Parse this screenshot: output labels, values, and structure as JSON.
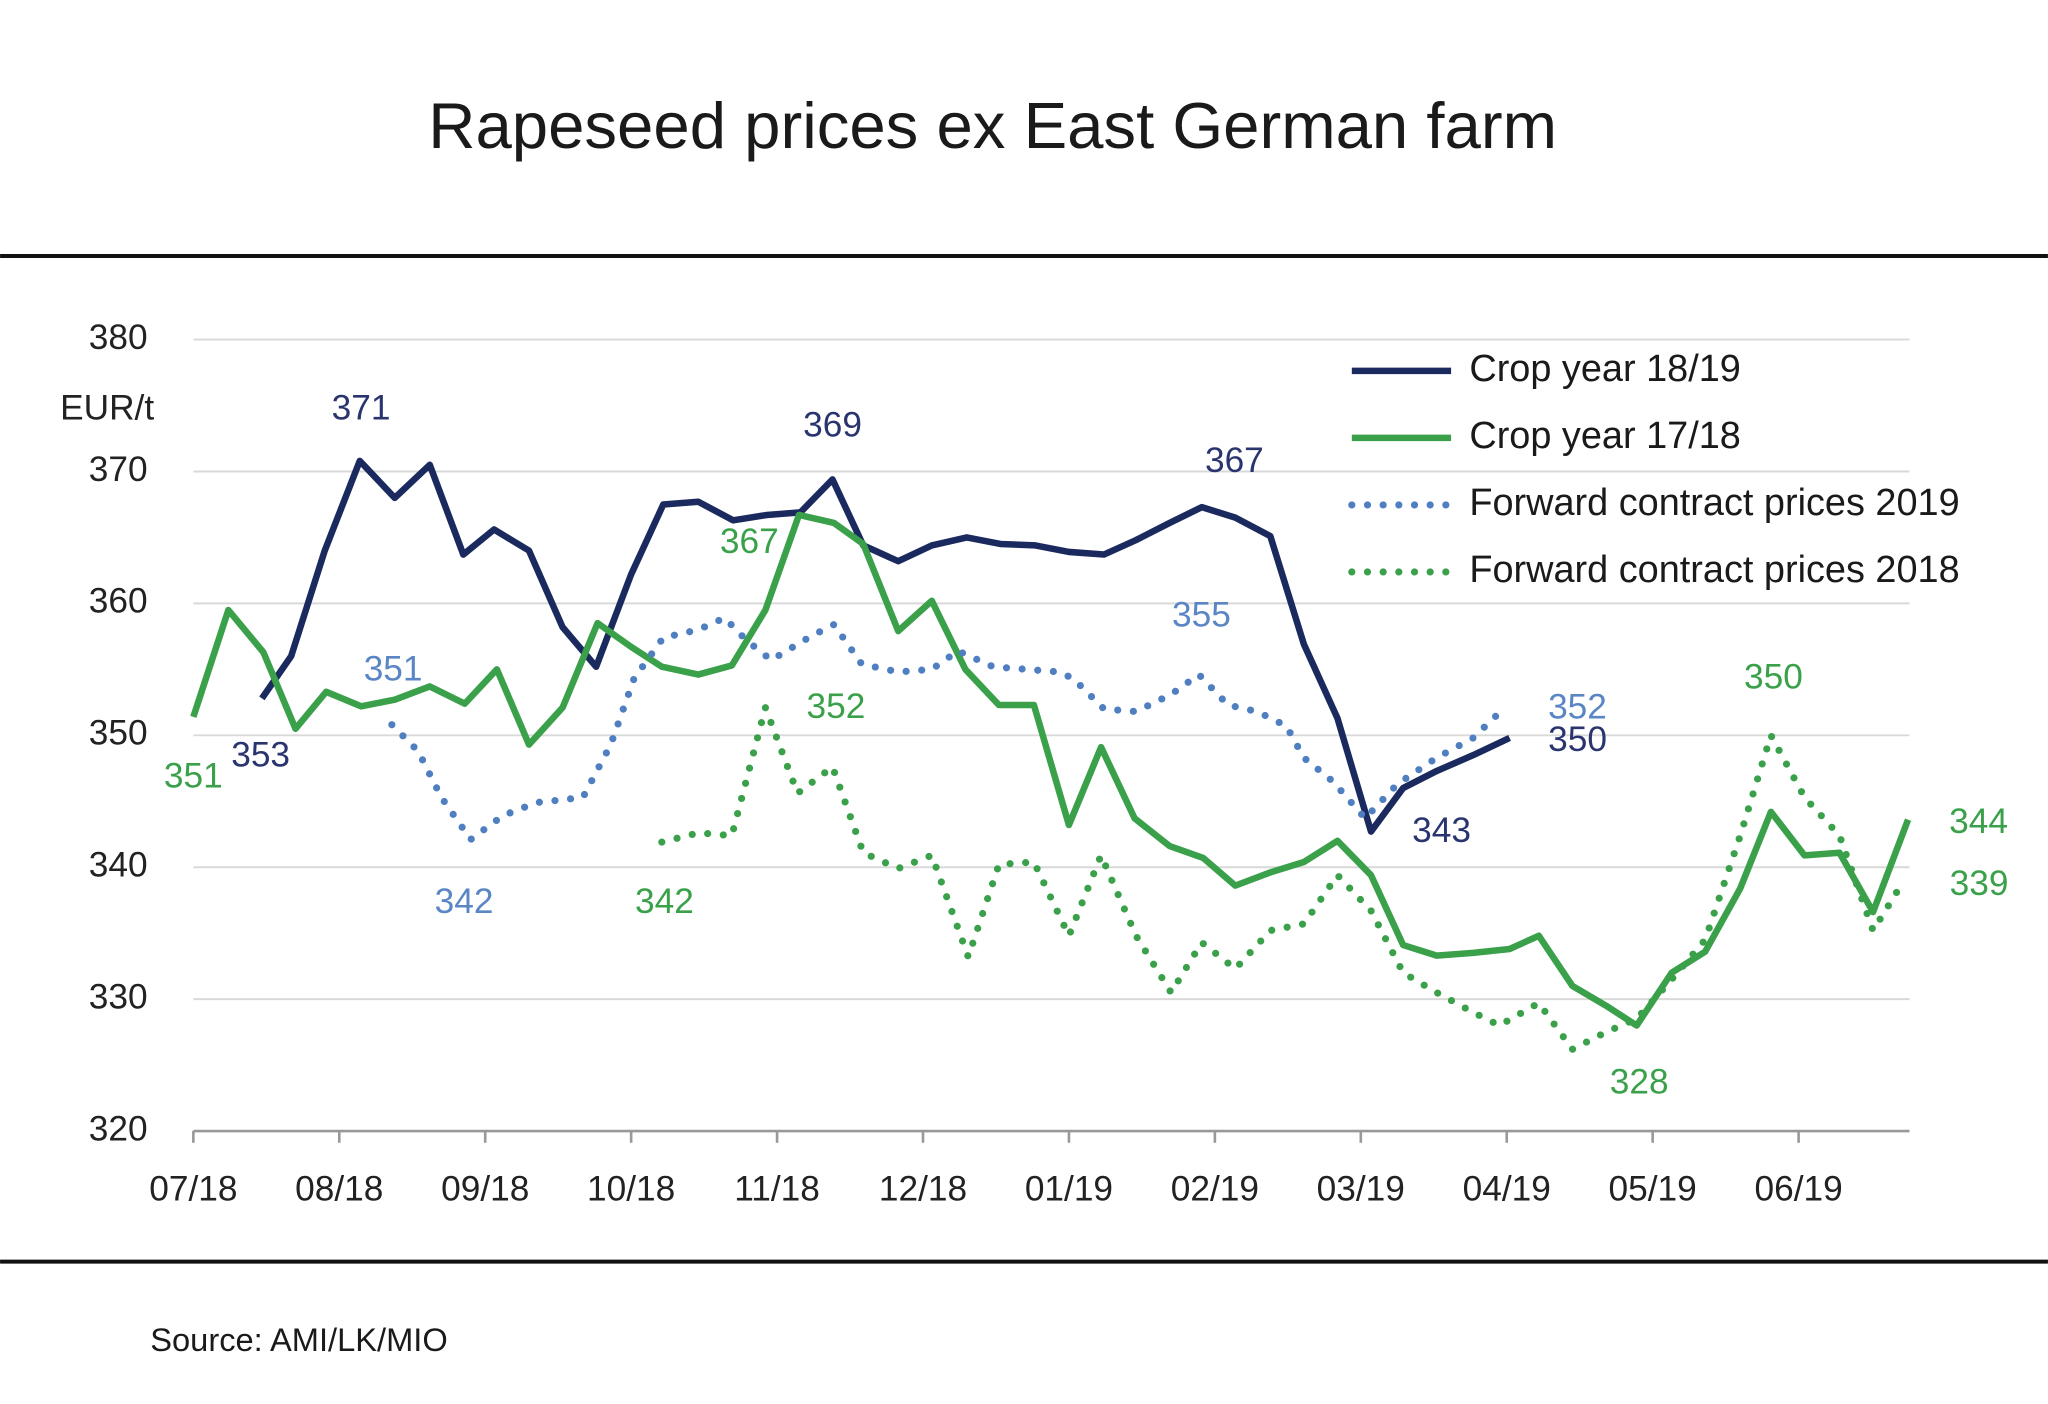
{
  "chart_data": {
    "type": "line",
    "title": "Rapeseed prices ex East German farm",
    "y_label": "EUR/t",
    "source": "Source: AMI/LK/MIO",
    "xlim": [
      0,
      11.76
    ],
    "xticks": [
      {
        "value": 0,
        "label": "07/18"
      },
      {
        "value": 1,
        "label": "08/18"
      },
      {
        "value": 2,
        "label": "09/18"
      },
      {
        "value": 3,
        "label": "10/18"
      },
      {
        "value": 4,
        "label": "11/18"
      },
      {
        "value": 5,
        "label": "12/18"
      },
      {
        "value": 6,
        "label": "01/19"
      },
      {
        "value": 7,
        "label": "02/19"
      },
      {
        "value": 8,
        "label": "03/19"
      },
      {
        "value": 9,
        "label": "04/19"
      },
      {
        "value": 10,
        "label": "05/19"
      },
      {
        "value": 11,
        "label": "06/19"
      }
    ],
    "ylim": [
      320,
      380
    ],
    "yticks": [
      320,
      330,
      340,
      350,
      360,
      370,
      380
    ],
    "grid": true,
    "legend": "top-right",
    "series": [
      {
        "name": "Crop year 18/19",
        "color": "#1b2a5e",
        "style": "solid",
        "label_color": "#2a3570",
        "x": [
          0.47,
          0.67,
          0.9,
          1.14,
          1.38,
          1.62,
          1.85,
          2.06,
          2.3,
          2.53,
          2.76,
          3.0,
          3.22,
          3.46,
          3.7,
          3.93,
          4.16,
          4.38,
          4.59,
          4.83,
          5.06,
          5.3,
          5.53,
          5.77,
          6.0,
          6.24,
          6.46,
          6.69,
          6.91,
          7.14,
          7.38,
          7.61,
          7.84,
          8.07,
          8.29,
          8.52,
          8.77,
          9.02
        ],
        "values": [
          352.8,
          356,
          364,
          370.8,
          368,
          370.5,
          363.7,
          365.6,
          364,
          358.2,
          355.2,
          362.2,
          367.5,
          367.7,
          366.3,
          366.7,
          366.9,
          369.4,
          364.4,
          363.2,
          364.4,
          365,
          364.5,
          364.4,
          363.9,
          363.7,
          364.8,
          366.1,
          367.3,
          366.5,
          365.1,
          356.9,
          351.3,
          342.7,
          346,
          347.3,
          348.5,
          349.8
        ],
        "value_labels": [
          "353",
          null,
          null,
          "371",
          null,
          null,
          null,
          null,
          null,
          null,
          null,
          null,
          null,
          null,
          null,
          null,
          null,
          "369",
          null,
          null,
          null,
          null,
          null,
          null,
          null,
          null,
          null,
          null,
          "367",
          null,
          null,
          null,
          null,
          "343",
          null,
          null,
          null,
          "350"
        ]
      },
      {
        "name": "Crop year 17/18",
        "color": "#3aa14a",
        "style": "solid",
        "label_color": "#3aa14a",
        "x": [
          0,
          0.24,
          0.48,
          0.7,
          0.91,
          1.15,
          1.38,
          1.62,
          1.86,
          2.08,
          2.3,
          2.53,
          2.77,
          3.0,
          3.21,
          3.46,
          3.69,
          3.92,
          4.15,
          4.39,
          4.59,
          4.83,
          5.06,
          5.29,
          5.52,
          5.76,
          6.0,
          6.22,
          6.45,
          6.69,
          6.92,
          7.14,
          7.38,
          7.61,
          7.84,
          8.07,
          8.29,
          8.52,
          8.77,
          9.02,
          9.22,
          9.45,
          9.68,
          9.89,
          10.13,
          10.36,
          10.6,
          10.81,
          11.04,
          11.28,
          11.51,
          11.75
        ],
        "values": [
          351.4,
          359.5,
          356.3,
          350.5,
          353.3,
          352.2,
          352.7,
          353.7,
          352.4,
          355,
          349.3,
          352.1,
          358.5,
          356.7,
          355.2,
          354.6,
          355.3,
          359.5,
          366.7,
          366.1,
          364.5,
          357.9,
          360.2,
          355,
          352.3,
          352.3,
          343.2,
          349.1,
          343.7,
          341.6,
          340.7,
          338.6,
          339.6,
          340.4,
          342,
          339.4,
          334.1,
          333.3,
          333.5,
          333.8,
          334.8,
          331,
          329.5,
          328,
          332,
          333.6,
          338.4,
          344.2,
          340.9,
          341.1,
          336.6,
          343.6
        ],
        "value_labels": [
          "351",
          null,
          null,
          null,
          null,
          null,
          null,
          null,
          null,
          null,
          null,
          null,
          null,
          null,
          null,
          null,
          null,
          null,
          "367",
          null,
          null,
          null,
          null,
          null,
          null,
          null,
          null,
          null,
          null,
          null,
          null,
          null,
          null,
          null,
          null,
          null,
          null,
          null,
          null,
          null,
          null,
          null,
          null,
          "328",
          null,
          null,
          null,
          null,
          null,
          null,
          null,
          "344"
        ]
      },
      {
        "name": "Forward contract prices 2019",
        "color": "#4f7fc0",
        "style": "dotted",
        "label_color": "#5b86c5",
        "x": [
          1.36,
          1.54,
          1.7,
          1.9,
          2.12,
          2.35,
          2.52,
          2.67,
          2.86,
          3.02,
          3.22,
          3.46,
          3.64,
          3.79,
          3.96,
          4.23,
          4.39,
          4.58,
          4.83,
          5.06,
          5.24,
          5.48,
          5.71,
          5.93,
          6.03,
          6.24,
          6.46,
          6.7,
          6.89,
          7.09,
          7.29,
          7.49,
          7.61,
          7.81,
          8.03,
          8.25,
          8.52,
          8.77,
          8.93
        ],
        "values": [
          350.8,
          348.8,
          345.3,
          342.1,
          343.9,
          344.9,
          345.1,
          345.3,
          349.3,
          354.3,
          357.4,
          358,
          358.9,
          357.2,
          355.7,
          357.5,
          358.4,
          355.4,
          354.8,
          355,
          356.4,
          355.2,
          355,
          354.8,
          354.3,
          352,
          351.8,
          353.1,
          354.6,
          352.3,
          351.8,
          350.7,
          348.3,
          346.5,
          343.7,
          346.3,
          348.3,
          349.8,
          351.5
        ],
        "value_labels": [
          "351",
          null,
          null,
          "342",
          null,
          null,
          null,
          null,
          null,
          null,
          null,
          null,
          null,
          null,
          null,
          null,
          null,
          null,
          null,
          null,
          null,
          null,
          null,
          null,
          null,
          null,
          null,
          null,
          "355",
          null,
          null,
          null,
          null,
          null,
          null,
          null,
          null,
          null,
          "352"
        ]
      },
      {
        "name": "Forward contract prices 2018",
        "color": "#3aa14a",
        "style": "dotted",
        "label_color": "#3aa14a",
        "x": [
          3.21,
          3.46,
          3.69,
          3.92,
          4.14,
          4.38,
          4.59,
          4.83,
          5.06,
          5.31,
          5.52,
          5.76,
          6.0,
          6.22,
          6.46,
          6.7,
          6.91,
          7.14,
          7.38,
          7.61,
          7.84,
          8.07,
          8.29,
          8.52,
          8.77,
          8.95,
          9.22,
          9.45,
          9.68,
          9.89,
          10.13,
          10.36,
          10.6,
          10.81,
          11.04,
          11.28,
          11.51,
          11.7
        ],
        "values": [
          341.9,
          342.6,
          342.4,
          352.1,
          345.6,
          347.6,
          341.1,
          339.9,
          340.9,
          333.2,
          340.2,
          340.4,
          334.8,
          340.9,
          334.8,
          330.5,
          334.3,
          332.3,
          335.2,
          335.7,
          339.4,
          336.7,
          332,
          330.5,
          329,
          328,
          329.7,
          326.2,
          327.5,
          328.5,
          331.5,
          334.5,
          342.4,
          350,
          345.3,
          342.4,
          335.2,
          338.6
        ],
        "value_labels": [
          "342",
          null,
          null,
          "352",
          null,
          null,
          null,
          null,
          null,
          null,
          null,
          null,
          null,
          null,
          null,
          null,
          null,
          null,
          null,
          null,
          null,
          null,
          null,
          null,
          null,
          null,
          null,
          null,
          null,
          null,
          null,
          null,
          null,
          "350",
          null,
          null,
          null,
          "339"
        ]
      }
    ]
  }
}
